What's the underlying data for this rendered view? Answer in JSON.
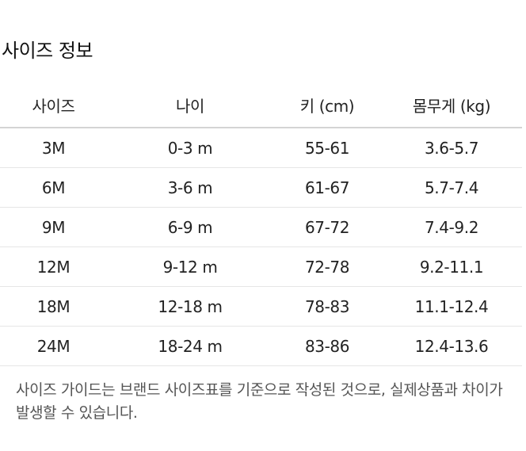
{
  "title": "사이즈 정보",
  "table": {
    "headers": [
      "사이즈",
      "나이",
      "키 (cm)",
      "몸무게 (kg)"
    ],
    "rows": [
      [
        "3M",
        "0-3 m",
        "55-61",
        "3.6-5.7"
      ],
      [
        "6M",
        "3-6 m",
        "61-67",
        "5.7-7.4"
      ],
      [
        "9M",
        "6-9 m",
        "67-72",
        "7.4-9.2"
      ],
      [
        "12M",
        "9-12 m",
        "72-78",
        "9.2-11.1"
      ],
      [
        "18M",
        "12-18 m",
        "78-83",
        "11.1-12.4"
      ],
      [
        "24M",
        "18-24 m",
        "83-86",
        "12.4-13.6"
      ]
    ]
  },
  "note": "사이즈 가이드는 브랜드 사이즈표를 기준으로 작성된 것으로, 실제상품과 차이가 발생할 수 있습니다."
}
